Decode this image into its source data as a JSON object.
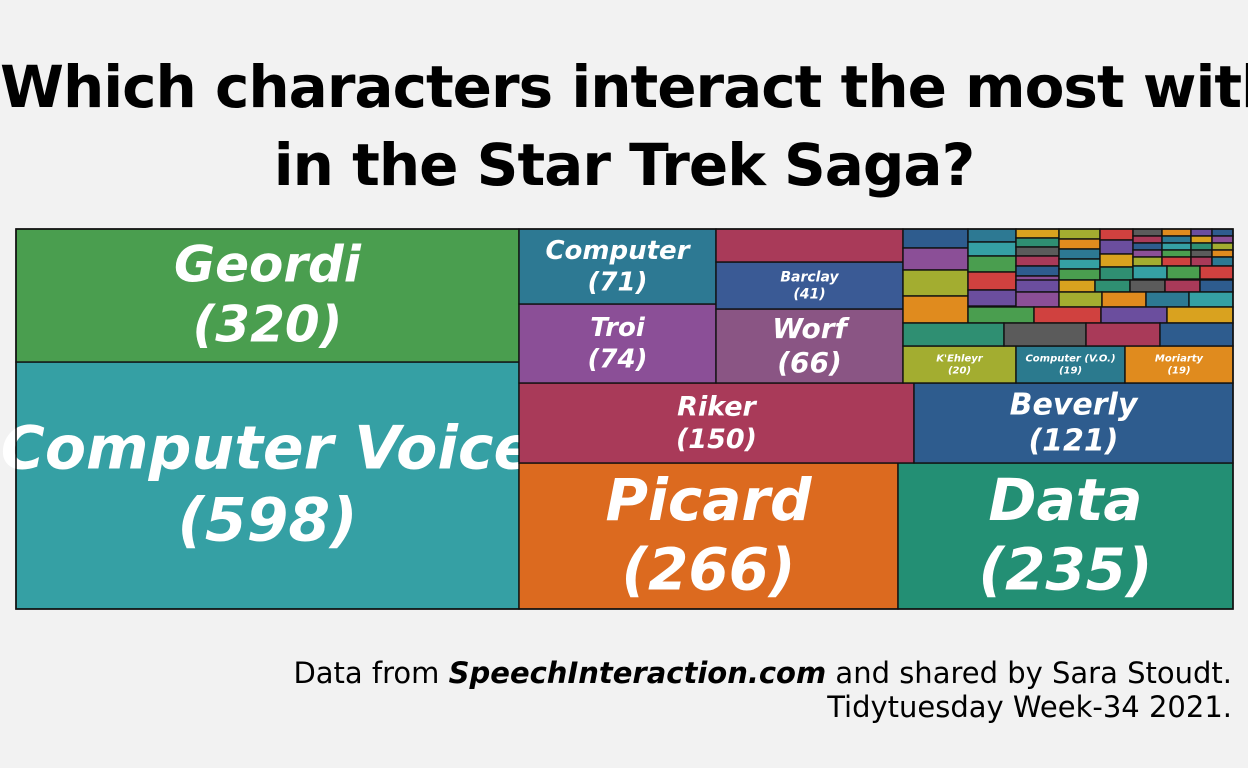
{
  "title": {
    "line1": "Which characters interact the most with VA",
    "line2": "in the Star Trek Saga?"
  },
  "caption": {
    "prefix": "Data from ",
    "source": "SpeechInteraction.com",
    "suffix": " and shared by Sara Stoudt.",
    "line2": "Tidytuesday Week-34 2021."
  },
  "chart_data": {
    "type": "treemap",
    "items": [
      {
        "name": "Computer Voice",
        "value": 598,
        "label": "Computer Voice\n(598)",
        "color": "#35a0a4"
      },
      {
        "name": "Geordi",
        "value": 320,
        "label": "Geordi\n(320)",
        "color": "#4a9e4f"
      },
      {
        "name": "Picard",
        "value": 266,
        "label": "Picard\n(266)",
        "color": "#dc6a1f"
      },
      {
        "name": "Data",
        "value": 235,
        "label": "Data\n(235)",
        "color": "#238f74"
      },
      {
        "name": "Riker",
        "value": 150,
        "label": "Riker\n(150)",
        "color": "#a93a59"
      },
      {
        "name": "Beverly",
        "value": 121,
        "label": "Beverly\n(121)",
        "color": "#2e5c8e"
      },
      {
        "name": "Troi",
        "value": 74,
        "label": "Troi\n(74)",
        "color": "#8b4f97"
      },
      {
        "name": "Computer",
        "value": 71,
        "label": "Computer\n(71)",
        "color": "#2d7993"
      },
      {
        "name": "Worf",
        "value": 66,
        "label": "Worf\n(66)",
        "color": "#8a5584"
      },
      {
        "name": "Barclay",
        "value": 41,
        "label": "Barclay\n(41)",
        "color": "#3a5a95"
      },
      {
        "name": "K'Ehleyr",
        "value": 20,
        "label": "K'Ehleyr\n(20)",
        "color": "#a3ad30"
      },
      {
        "name": "Computer (V.O.)",
        "value": 19,
        "label": "Computer (V.O.)\n(19)",
        "color": "#2b7a8e"
      },
      {
        "name": "Moriarty",
        "value": 19,
        "label": "Moriarty\n(19)",
        "color": "#e08b1e"
      }
    ],
    "small_tile_colors": [
      "#a93a59",
      "#2e5c8e",
      "#8b4f97",
      "#a3ad30",
      "#e08b1e",
      "#2d7993",
      "#35a0a4",
      "#4a9e4f",
      "#d0413f",
      "#6b4e9e",
      "#d9a21f",
      "#2f8f72",
      "#5b5b5b"
    ]
  }
}
